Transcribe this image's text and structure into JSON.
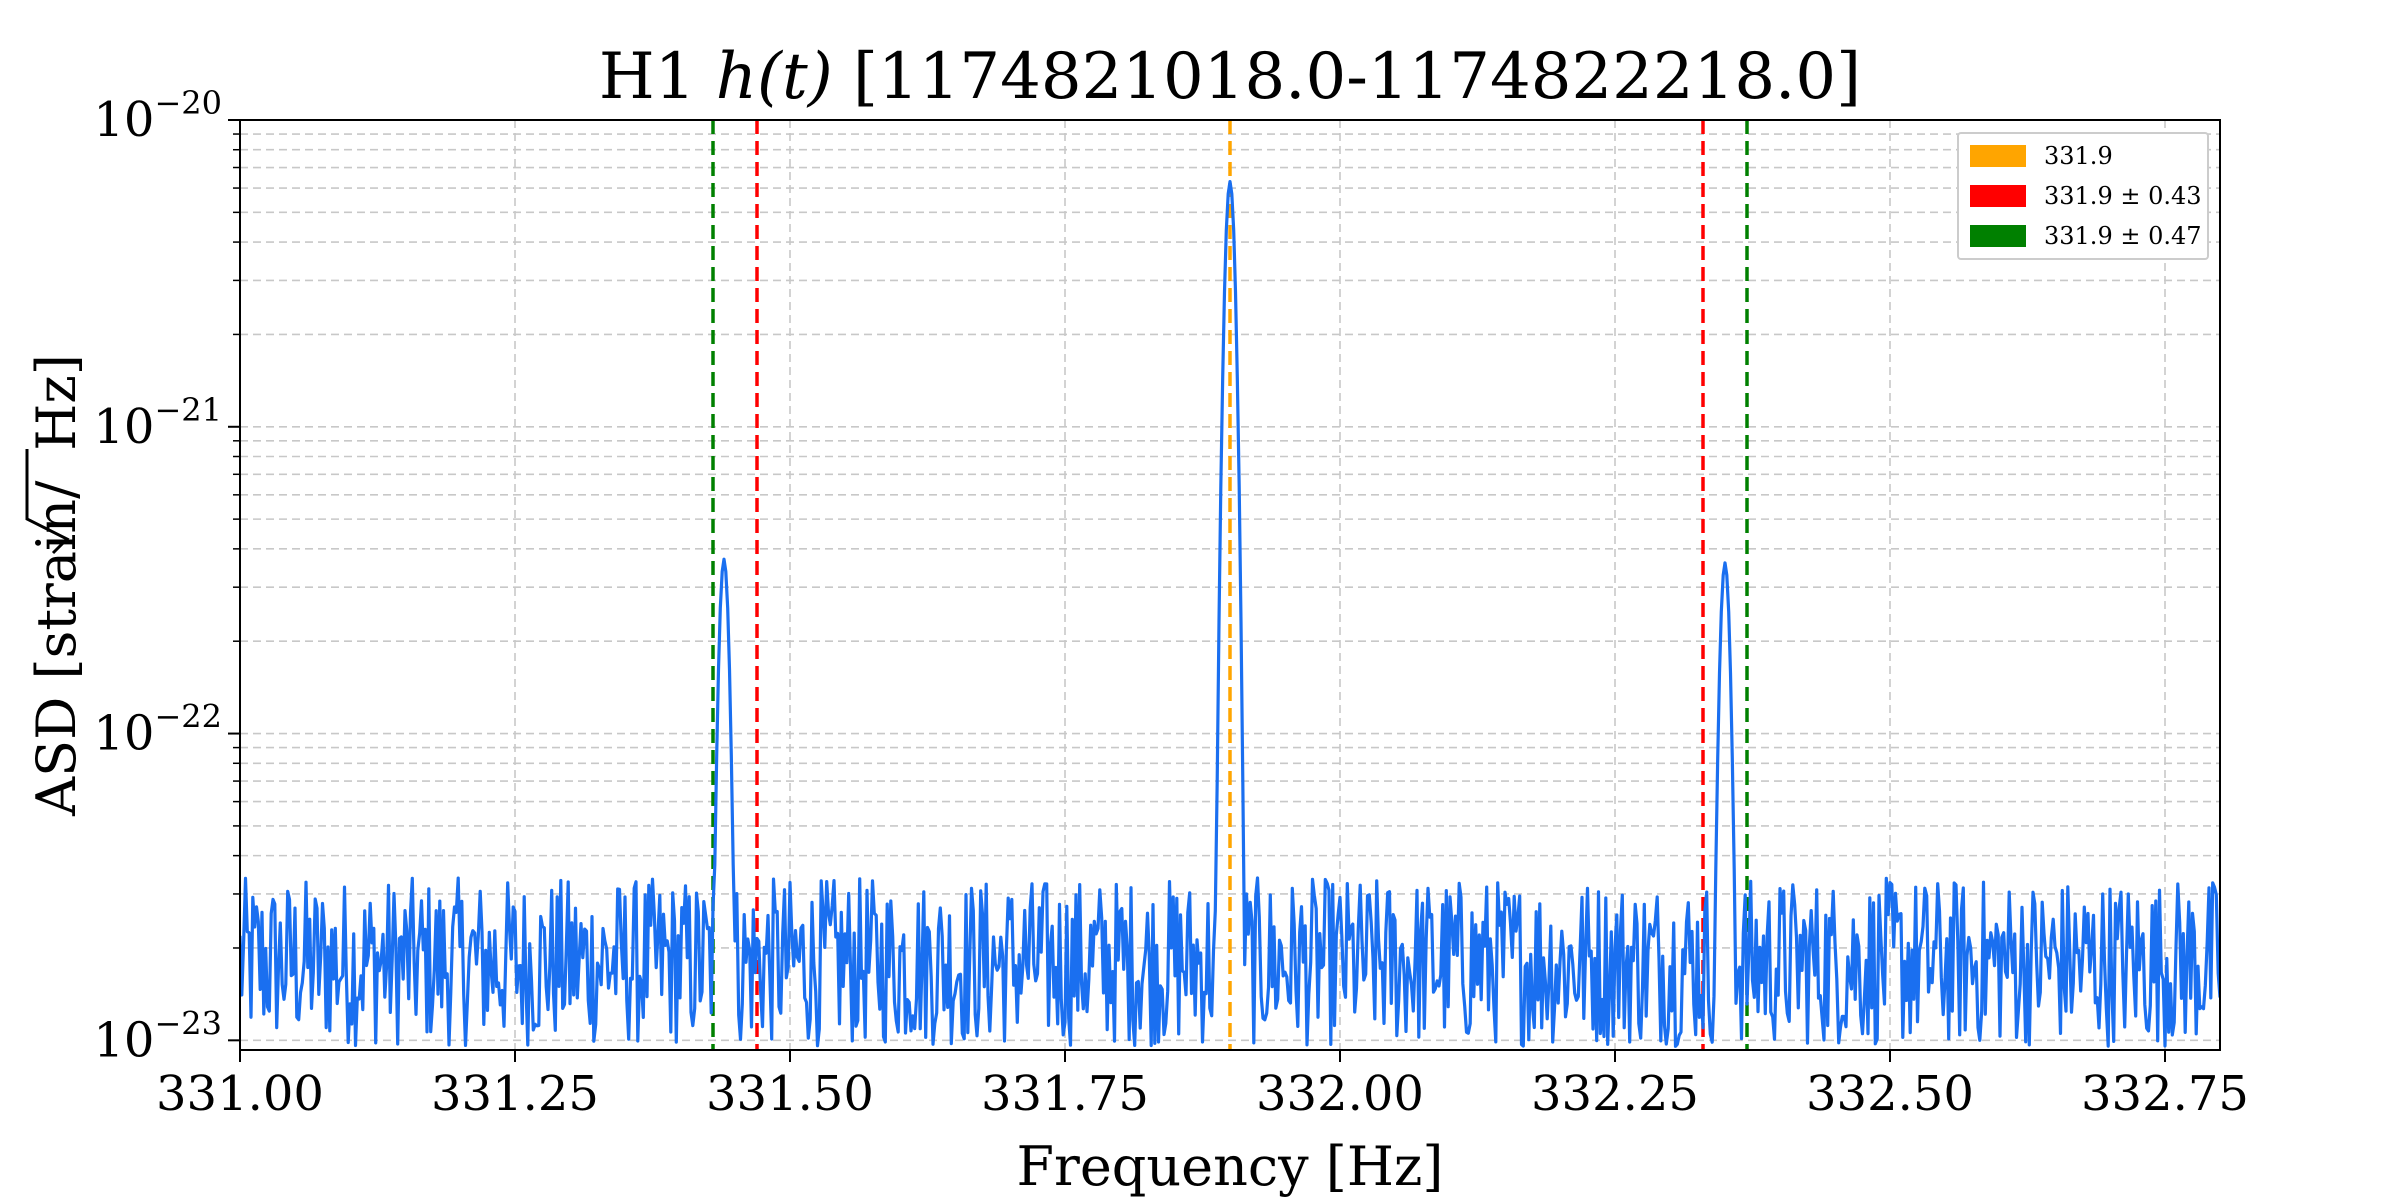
{
  "chart_data": {
    "type": "line",
    "title_prefix": "H1 ",
    "title_italic": "h(t)",
    "title_suffix": " [1174821018.0-1174822218.0]",
    "xlabel": "Frequency [Hz]",
    "ylabel_prefix": "ASD [strain/",
    "ylabel_radicand": "Hz",
    "ylabel_suffix": "]",
    "xlim": [
      331.0,
      332.8
    ],
    "ylim": [
      9.3e-24,
      1e-20
    ],
    "yscale": "log",
    "grid": true,
    "legend_position": "top-right",
    "x_ticks": [
      "331.00",
      "331.25",
      "331.50",
      "331.75",
      "332.00",
      "332.25",
      "332.50",
      "332.75"
    ],
    "y_ticks": [
      {
        "base": "10",
        "exp": "−20",
        "value": 1e-20
      },
      {
        "base": "10",
        "exp": "−21",
        "value": 1e-21
      },
      {
        "base": "10",
        "exp": "−22",
        "value": 1e-22
      },
      {
        "base": "10",
        "exp": "−23",
        "value": 1e-23
      }
    ],
    "series_color": "#1a6ff0",
    "noise_floor": 1.8e-23,
    "peaks": [
      {
        "x": 331.44,
        "y": 3.7e-22
      },
      {
        "x": 331.9,
        "y": 6.3e-21
      },
      {
        "x": 332.35,
        "y": 3.6e-22
      }
    ],
    "vlines": [
      {
        "x": 331.9,
        "color": "#ffa500"
      },
      {
        "x": 331.47,
        "color": "#ff0000"
      },
      {
        "x": 332.33,
        "color": "#ff0000"
      },
      {
        "x": 331.43,
        "color": "#008000"
      },
      {
        "x": 332.37,
        "color": "#008000"
      }
    ],
    "legend": [
      {
        "label": "331.9",
        "color": "#ffa500"
      },
      {
        "label": "331.9 ± 0.43",
        "color": "#ff0000"
      },
      {
        "label": "331.9 ± 0.47",
        "color": "#008000"
      }
    ]
  }
}
